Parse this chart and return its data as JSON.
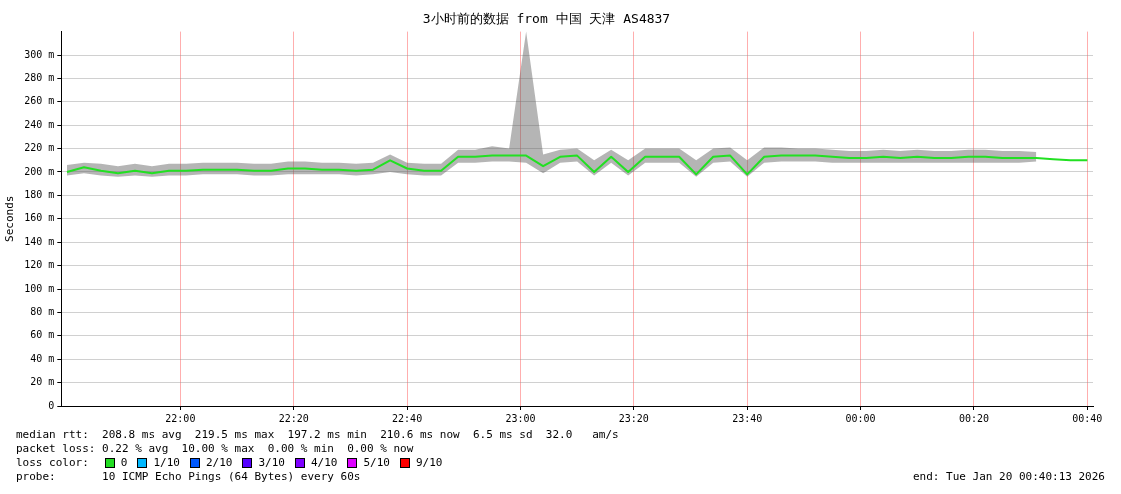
{
  "chart_data": {
    "type": "line",
    "title": "3小时前的数据 from 中国 天津 AS4837",
    "ylabel": "Seconds",
    "x": [
      "2026-01-19T21:40",
      "2026-01-19T21:43",
      "2026-01-19T21:46",
      "2026-01-19T21:49",
      "2026-01-19T21:52",
      "2026-01-19T21:55",
      "2026-01-19T21:58",
      "2026-01-19T22:01",
      "2026-01-19T22:04",
      "2026-01-19T22:07",
      "2026-01-19T22:10",
      "2026-01-19T22:13",
      "2026-01-19T22:16",
      "2026-01-19T22:19",
      "2026-01-19T22:22",
      "2026-01-19T22:25",
      "2026-01-19T22:28",
      "2026-01-19T22:31",
      "2026-01-19T22:34",
      "2026-01-19T22:37",
      "2026-01-19T22:40",
      "2026-01-19T22:43",
      "2026-01-19T22:46",
      "2026-01-19T22:49",
      "2026-01-19T22:52",
      "2026-01-19T22:55",
      "2026-01-19T22:58",
      "2026-01-19T23:01",
      "2026-01-19T23:04",
      "2026-01-19T23:07",
      "2026-01-19T23:10",
      "2026-01-19T23:13",
      "2026-01-19T23:16",
      "2026-01-19T23:19",
      "2026-01-19T23:22",
      "2026-01-19T23:25",
      "2026-01-19T23:28",
      "2026-01-19T23:31",
      "2026-01-19T23:34",
      "2026-01-19T23:37",
      "2026-01-19T23:40",
      "2026-01-19T23:43",
      "2026-01-19T23:46",
      "2026-01-19T23:49",
      "2026-01-19T23:52",
      "2026-01-19T23:55",
      "2026-01-19T23:58",
      "2026-01-20T00:01",
      "2026-01-20T00:04",
      "2026-01-20T00:07",
      "2026-01-20T00:10",
      "2026-01-20T00:13",
      "2026-01-20T00:16",
      "2026-01-20T00:19",
      "2026-01-20T00:22",
      "2026-01-20T00:25",
      "2026-01-20T00:28",
      "2026-01-20T00:31",
      "2026-01-20T00:34",
      "2026-01-20T00:37",
      "2026-01-20T00:40"
    ],
    "series": [
      {
        "color": "#22e022",
        "values": [
          200,
          204,
          201,
          199,
          201,
          199,
          201,
          201,
          202,
          202,
          202,
          201,
          201,
          203,
          203,
          202,
          202,
          201,
          202,
          210,
          203,
          201,
          201,
          213,
          213,
          214,
          214,
          214,
          205,
          213,
          214,
          200,
          213,
          200,
          213,
          213,
          213,
          198,
          213,
          214,
          198,
          213,
          214,
          214,
          214,
          213,
          212,
          212,
          213,
          212,
          213,
          212,
          212,
          213,
          213,
          212,
          212,
          212,
          211,
          210,
          210
        ],
        "lower": [
          197,
          199,
          197,
          196,
          197,
          196,
          197,
          197,
          198,
          198,
          198,
          197,
          197,
          198,
          198,
          198,
          198,
          197,
          198,
          200,
          198,
          197,
          197,
          208,
          208,
          209,
          209,
          208,
          199,
          208,
          209,
          197,
          208,
          197,
          208,
          208,
          208,
          196,
          208,
          209,
          196,
          208,
          209,
          209,
          209,
          208,
          208,
          208,
          208,
          208,
          208,
          208,
          208,
          208,
          208,
          208,
          208,
          209,
          null,
          null,
          null
        ],
        "upper": [
          206,
          208,
          207,
          205,
          207,
          205,
          207,
          207,
          208,
          208,
          208,
          207,
          207,
          209,
          209,
          208,
          208,
          207,
          208,
          215,
          208,
          207,
          207,
          219,
          219,
          222,
          220,
          320,
          215,
          219,
          220,
          210,
          219,
          210,
          220,
          220,
          220,
          210,
          220,
          221,
          210,
          221,
          221,
          220,
          220,
          219,
          218,
          218,
          219,
          218,
          219,
          218,
          218,
          219,
          219,
          218,
          218,
          217,
          null,
          null,
          null
        ]
      }
    ],
    "xlim": [
      "2026-01-19T21:39",
      "2026-01-20T00:41"
    ],
    "xticks": [
      {
        "value": "2026-01-19T22:00",
        "label": "22:00"
      },
      {
        "value": "2026-01-19T22:20",
        "label": "22:20"
      },
      {
        "value": "2026-01-19T22:40",
        "label": "22:40"
      },
      {
        "value": "2026-01-19T23:00",
        "label": "23:00"
      },
      {
        "value": "2026-01-19T23:20",
        "label": "23:20"
      },
      {
        "value": "2026-01-19T23:40",
        "label": "23:40"
      },
      {
        "value": "2026-01-20T00:00",
        "label": "00:00"
      },
      {
        "value": "2026-01-20T00:20",
        "label": "00:20"
      },
      {
        "value": "2026-01-20T00:40",
        "label": "00:40"
      }
    ],
    "ylim": [
      0,
      320
    ],
    "yticks": [
      0,
      {
        "value": 20,
        "label": "20 m"
      },
      {
        "value": 40,
        "label": "40 m"
      },
      {
        "value": 60,
        "label": "60 m"
      },
      {
        "value": 80,
        "label": "80 m"
      },
      {
        "value": 100,
        "label": "100 m"
      },
      {
        "value": 120,
        "label": "120 m"
      },
      {
        "value": 140,
        "label": "140 m"
      },
      {
        "value": 160,
        "label": "160 m"
      },
      {
        "value": 180,
        "label": "180 m"
      },
      {
        "value": 200,
        "label": "200 m"
      },
      {
        "value": 220,
        "label": "220 m"
      },
      {
        "value": 240,
        "label": "240 m"
      },
      {
        "value": 260,
        "label": "260 m"
      },
      {
        "value": 280,
        "label": "280 m"
      },
      {
        "value": 300,
        "label": "300 m"
      }
    ],
    "grid": true,
    "marker": "none",
    "line_style": "solid",
    "annotations": [
      "median rtt:  208.8 ms avg  219.5 ms max  197.2 ms min  210.6 ms now  6.5 ms sd  32.0   am/s",
      "packet loss: 0.22 % avg  10.00 % max  0.00 % min  0.00 % now",
      "loss color:",
      "0",
      "1/10",
      "2/10",
      "3/10",
      "4/10",
      "5/10",
      "9/10",
      "probe:       10 ICMP Echo Pings (64 Bytes) every 60s",
      "end: Tue Jan 20 00:40:13 2026"
    ]
  }
}
